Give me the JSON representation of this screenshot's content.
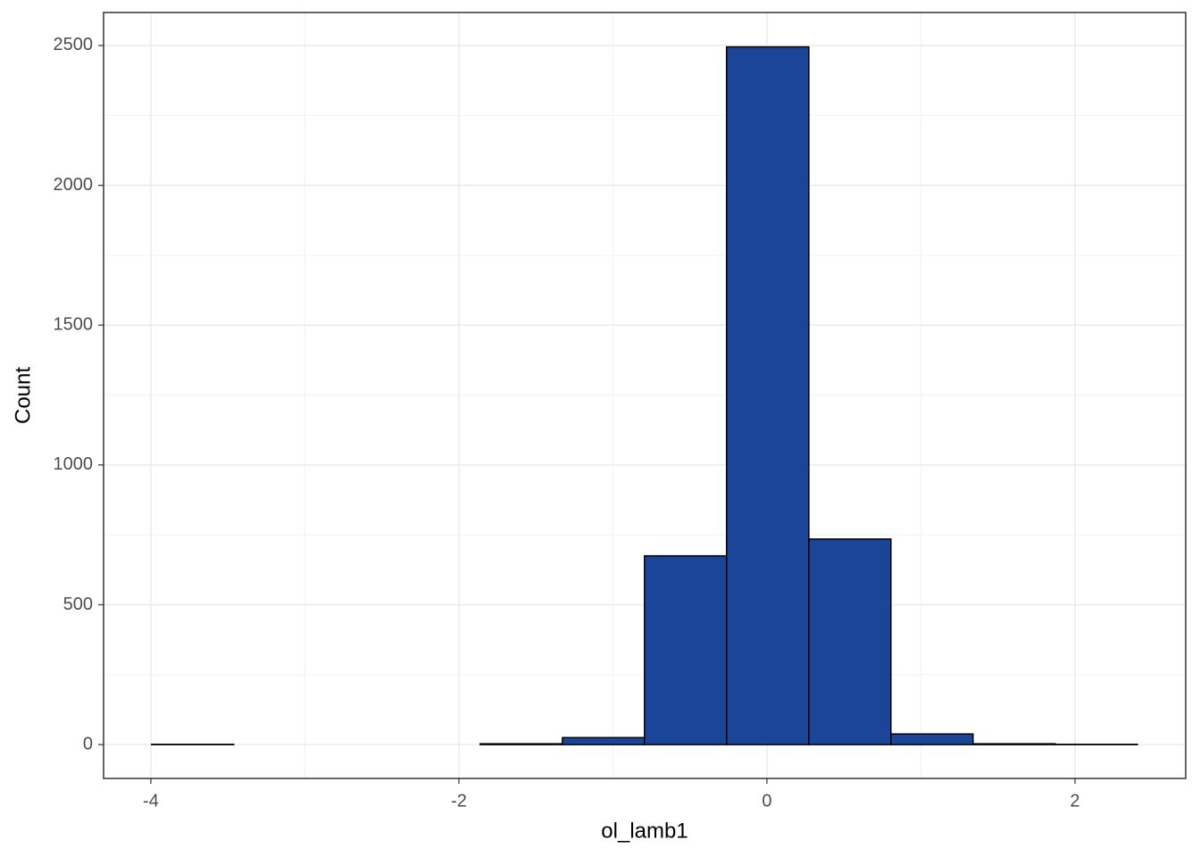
{
  "chart_data": {
    "type": "histogram",
    "x_label": "ol_lamb1",
    "y_label": "Count",
    "bins": [
      -3.995,
      -3.462,
      -2.928,
      -2.395,
      -1.862,
      -1.328,
      -0.795,
      -0.262,
      0.272,
      0.805,
      1.338,
      1.872,
      2.405
    ],
    "values": [
      1,
      0,
      0,
      0,
      3,
      25,
      675,
      2495,
      735,
      38,
      3,
      1
    ],
    "color": "#1a4599",
    "xlim": [
      -4.307,
      2.719
    ],
    "ylim": [
      -121,
      2618
    ],
    "xticks": [
      -4,
      -2,
      0,
      2
    ],
    "yticks": [
      0,
      500,
      1000,
      1500,
      2000,
      2500
    ],
    "grid": true
  }
}
